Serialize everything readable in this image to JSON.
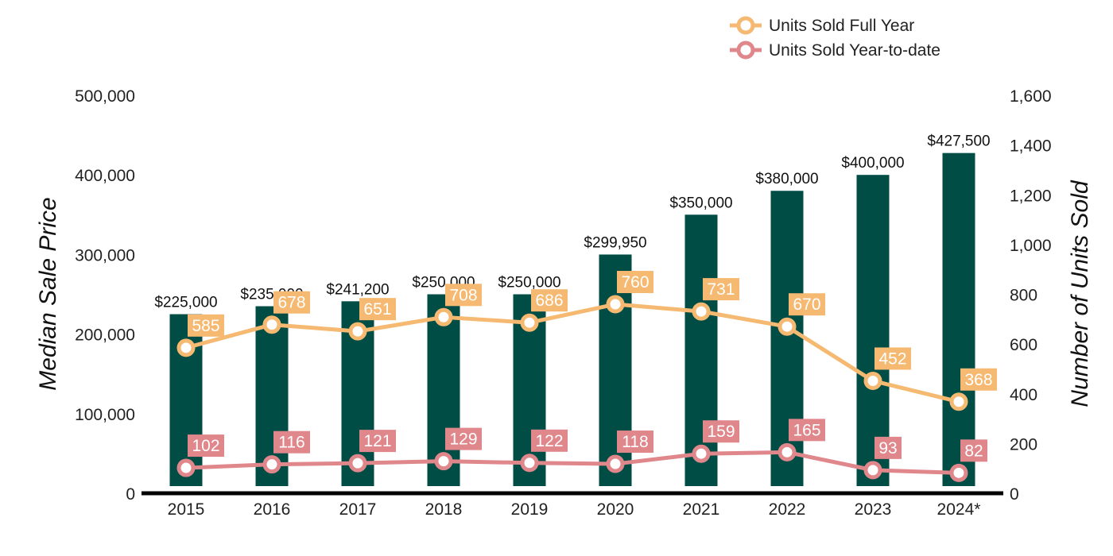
{
  "chart_data": {
    "type": "bar",
    "categories": [
      "2015",
      "2016",
      "2017",
      "2018",
      "2019",
      "2020",
      "2021",
      "2022",
      "2023",
      "2024*"
    ],
    "bars": {
      "values": [
        225000,
        235000,
        241200,
        250000,
        250000,
        299950,
        350000,
        380000,
        400000,
        427500
      ],
      "labels": [
        "$225,000",
        "$235,000",
        "$241,200",
        "$250,000",
        "$250,000",
        "$299,950",
        "$350,000",
        "$380,000",
        "$400,000",
        "$427,500"
      ],
      "color": "#004d45"
    },
    "series": [
      {
        "name": "Units Sold Full Year",
        "values": [
          585,
          678,
          651,
          708,
          686,
          760,
          731,
          670,
          452,
          368
        ],
        "color": "#f5b971"
      },
      {
        "name": "Units Sold Year-to-date",
        "values": [
          102,
          116,
          121,
          129,
          122,
          118,
          159,
          165,
          93,
          82
        ],
        "color": "#e0878c"
      }
    ],
    "ylabel": "Median Sale Price",
    "y2label": "Number of Units Sold",
    "ylim": [
      0,
      500000
    ],
    "y2lim": [
      0,
      1600
    ],
    "yticks": [
      "0",
      "100,000",
      "200,000",
      "300,000",
      "400,000",
      "500,000"
    ],
    "y2ticks": [
      "0",
      "200",
      "400",
      "600",
      "800",
      "1,000",
      "1,200",
      "1,400",
      "1,600"
    ],
    "legend_position": "top-right",
    "grid": false
  }
}
